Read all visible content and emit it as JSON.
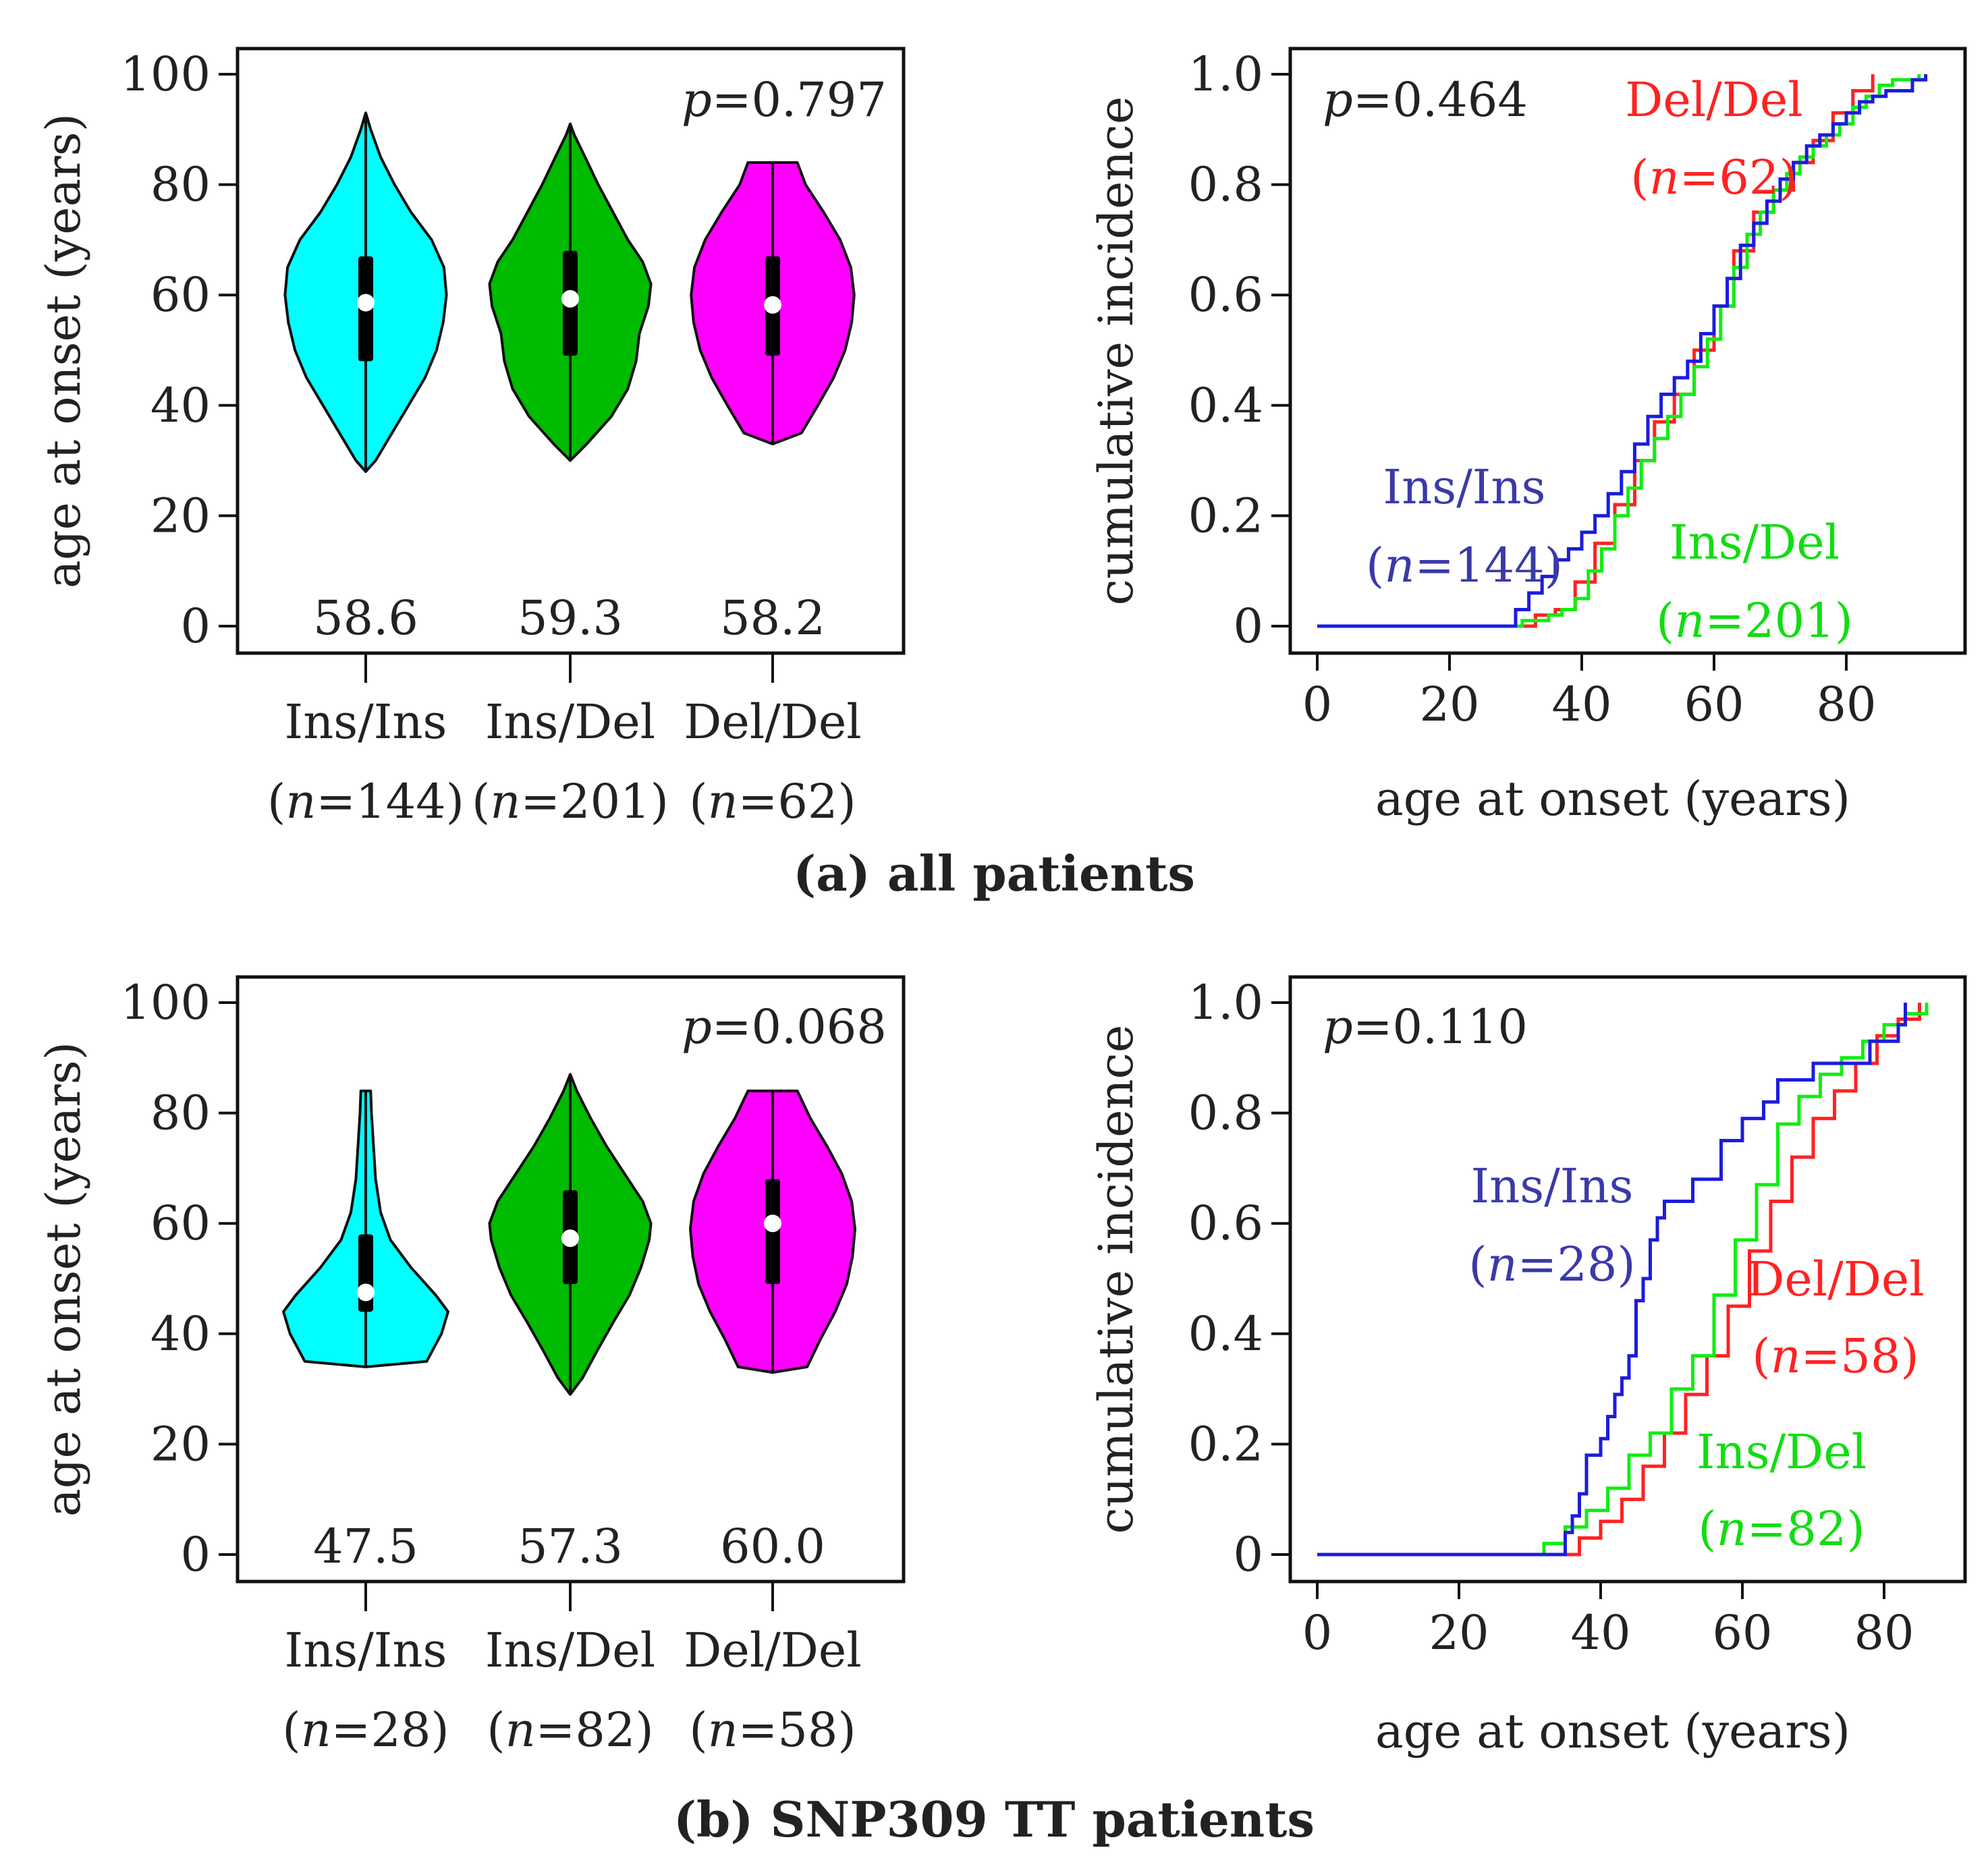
{
  "captions": [
    "(a) all patients",
    "(b) SNP309 TT patients"
  ],
  "colors": {
    "ins_ins_fill": "#00ffff",
    "ins_del_fill": "#00bb00",
    "del_del_fill": "#ff00ff",
    "ins_ins_line": "#1c1cdd",
    "ins_del_line": "#11ee11",
    "del_del_line": "#ff2222",
    "ins_ins_label": "#3a3aa8"
  },
  "chart_data": [
    {
      "id": "a-violin",
      "type": "violin",
      "panel": "(a) all patients",
      "ylabel": "age at onset (years)",
      "ylim": [
        0,
        100
      ],
      "yticks": [
        0,
        20,
        40,
        60,
        80,
        100
      ],
      "pvalue": {
        "label": "p",
        "text": "=0.797"
      },
      "groups": [
        {
          "name": "Ins/Ins",
          "n_text": "(n=144)",
          "n_prefix": "(",
          "n_var": "n",
          "n_value": "=144)",
          "median_label": "58.6",
          "min": 28,
          "max": 93,
          "q1": 48,
          "q3": 67,
          "median": 58.6
        },
        {
          "name": "Ins/Del",
          "n_text": "(n=201)",
          "n_prefix": "(",
          "n_var": "n",
          "n_value": "=201)",
          "median_label": "59.3",
          "min": 30,
          "max": 91,
          "q1": 49,
          "q3": 68,
          "median": 59.3
        },
        {
          "name": "Del/Del",
          "n_text": "(n=62)",
          "n_prefix": "(",
          "n_var": "n",
          "n_value": "=62)",
          "median_label": "58.2",
          "min": 33,
          "max": 84,
          "q1": 49,
          "q3": 67,
          "median": 58.2
        }
      ]
    },
    {
      "id": "a-incidence",
      "type": "line",
      "panel": "(a) all patients",
      "xlabel": "age at onset (years)",
      "ylabel": "cumulative incidence",
      "xlim": [
        0,
        92
      ],
      "ylim": [
        0,
        1
      ],
      "xticks": [
        0,
        20,
        40,
        60,
        80
      ],
      "yticks": [
        "0",
        "0.2",
        "0.4",
        "0.6",
        "0.8",
        "1.0"
      ],
      "pvalue": {
        "label": "p",
        "text": "=0.464"
      },
      "series": [
        {
          "name": "Ins/Ins",
          "n_var": "n",
          "n_value": "=144)",
          "x": [
            0,
            28,
            30,
            32,
            34,
            36,
            38,
            40,
            42,
            44,
            46,
            48,
            50,
            52,
            54,
            56,
            58,
            60,
            62,
            64,
            66,
            68,
            70,
            72,
            74,
            76,
            78,
            80,
            82,
            84,
            86,
            88,
            90,
            92
          ],
          "y": [
            0,
            0,
            0.03,
            0.06,
            0.09,
            0.12,
            0.14,
            0.17,
            0.2,
            0.24,
            0.28,
            0.33,
            0.38,
            0.42,
            0.45,
            0.48,
            0.53,
            0.58,
            0.63,
            0.69,
            0.73,
            0.77,
            0.81,
            0.84,
            0.87,
            0.89,
            0.91,
            0.93,
            0.95,
            0.96,
            0.97,
            0.97,
            0.99,
            1.0
          ]
        },
        {
          "name": "Ins/Del",
          "n_var": "n",
          "n_value": "=201)",
          "x": [
            0,
            29,
            31,
            33,
            35,
            37,
            39,
            41,
            43,
            45,
            47,
            49,
            51,
            53,
            55,
            57,
            59,
            61,
            63,
            65,
            67,
            69,
            71,
            73,
            75,
            77,
            79,
            81,
            83,
            85,
            87,
            89,
            91
          ],
          "y": [
            0,
            0,
            0.01,
            0.01,
            0.02,
            0.03,
            0.05,
            0.1,
            0.14,
            0.2,
            0.25,
            0.3,
            0.34,
            0.38,
            0.42,
            0.47,
            0.52,
            0.58,
            0.65,
            0.71,
            0.75,
            0.79,
            0.82,
            0.85,
            0.87,
            0.89,
            0.91,
            0.94,
            0.96,
            0.98,
            0.99,
            0.99,
            1.0
          ]
        },
        {
          "name": "Del/Del",
          "n_var": "n",
          "n_value": "=62)",
          "x": [
            0,
            30,
            33,
            36,
            39,
            42,
            45,
            48,
            51,
            54,
            57,
            60,
            63,
            66,
            69,
            72,
            75,
            78,
            81,
            84
          ],
          "y": [
            0,
            0,
            0.02,
            0.03,
            0.08,
            0.15,
            0.22,
            0.3,
            0.37,
            0.42,
            0.5,
            0.58,
            0.68,
            0.75,
            0.79,
            0.84,
            0.88,
            0.93,
            0.97,
            1.0
          ]
        }
      ]
    },
    {
      "id": "b-violin",
      "type": "violin",
      "panel": "(b) SNP309 TT patients",
      "ylabel": "age at onset (years)",
      "ylim": [
        0,
        100
      ],
      "yticks": [
        0,
        20,
        40,
        60,
        80,
        100
      ],
      "pvalue": {
        "label": "p",
        "text": "=0.068"
      },
      "groups": [
        {
          "name": "Ins/Ins",
          "n_text": "(n=28)",
          "n_prefix": "(",
          "n_var": "n",
          "n_value": "=28)",
          "median_label": "47.5",
          "min": 34,
          "max": 84,
          "q1": 44,
          "q3": 58,
          "median": 47.5
        },
        {
          "name": "Ins/Del",
          "n_text": "(n=82)",
          "n_prefix": "(",
          "n_var": "n",
          "n_value": "=82)",
          "median_label": "57.3",
          "min": 29,
          "max": 87,
          "q1": 49,
          "q3": 66,
          "median": 57.3
        },
        {
          "name": "Del/Del",
          "n_text": "(n=58)",
          "n_prefix": "(",
          "n_var": "n",
          "n_value": "=58)",
          "median_label": "60.0",
          "min": 33,
          "max": 84,
          "q1": 49,
          "q3": 68,
          "median": 60.0
        }
      ]
    },
    {
      "id": "b-incidence",
      "type": "line",
      "panel": "(b) SNP309 TT patients",
      "xlabel": "age at onset (years)",
      "ylabel": "cumulative incidence",
      "xlim": [
        0,
        86
      ],
      "ylim": [
        0,
        1
      ],
      "xticks": [
        0,
        20,
        40,
        60,
        80
      ],
      "yticks": [
        "0",
        "0.2",
        "0.4",
        "0.6",
        "0.8",
        "1.0"
      ],
      "pvalue": {
        "label": "p",
        "text": "=0.110"
      },
      "series": [
        {
          "name": "Ins/Ins",
          "n_var": "n",
          "n_value": "=28)",
          "x": [
            0,
            34,
            35,
            36,
            37,
            38,
            40,
            41,
            42,
            43,
            44,
            45,
            46,
            47,
            48,
            49,
            50,
            51,
            53,
            55,
            57,
            58,
            60,
            63,
            65,
            70,
            75,
            78,
            82,
            83
          ],
          "y": [
            0,
            0,
            0.04,
            0.07,
            0.11,
            0.18,
            0.21,
            0.25,
            0.29,
            0.32,
            0.36,
            0.46,
            0.5,
            0.57,
            0.61,
            0.64,
            0.64,
            0.64,
            0.68,
            0.68,
            0.75,
            0.75,
            0.79,
            0.82,
            0.86,
            0.89,
            0.89,
            0.93,
            0.96,
            1.0
          ]
        },
        {
          "name": "Ins/Del",
          "n_var": "n",
          "n_value": "=82)",
          "x": [
            0,
            29,
            32,
            35,
            38,
            41,
            44,
            47,
            50,
            53,
            56,
            59,
            62,
            65,
            68,
            71,
            74,
            77,
            80,
            83,
            86
          ],
          "y": [
            0,
            0,
            0.02,
            0.05,
            0.08,
            0.12,
            0.18,
            0.22,
            0.3,
            0.36,
            0.47,
            0.57,
            0.67,
            0.78,
            0.83,
            0.87,
            0.9,
            0.93,
            0.96,
            0.98,
            1.0
          ]
        },
        {
          "name": "Del/Del",
          "n_var": "n",
          "n_value": "=58)",
          "x": [
            0,
            34,
            37,
            40,
            43,
            46,
            49,
            52,
            55,
            58,
            61,
            64,
            67,
            70,
            73,
            76,
            79,
            82,
            85
          ],
          "y": [
            0,
            0,
            0.03,
            0.06,
            0.1,
            0.16,
            0.22,
            0.29,
            0.36,
            0.45,
            0.55,
            0.64,
            0.72,
            0.79,
            0.84,
            0.89,
            0.94,
            0.97,
            1.0
          ]
        }
      ]
    }
  ]
}
